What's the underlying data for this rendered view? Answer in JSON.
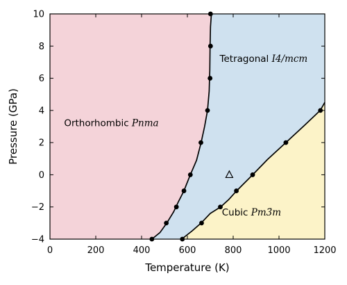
{
  "chart_data": {
    "type": "phase-diagram",
    "title": "",
    "xlabel": "Temperature (K)",
    "ylabel": "Pressure (GPa)",
    "xlim": [
      0,
      1200
    ],
    "ylim": [
      -4,
      10
    ],
    "x_ticks": [
      "0",
      "200",
      "400",
      "600",
      "800",
      "1000",
      "1200"
    ],
    "y_ticks": [
      "−4",
      "−2",
      "0",
      "2",
      "4",
      "6",
      "8",
      "10"
    ],
    "x_tick_values": [
      0,
      200,
      400,
      600,
      800,
      1000,
      1200
    ],
    "y_tick_values": [
      -4,
      -2,
      0,
      2,
      4,
      6,
      8,
      10
    ],
    "grid": false,
    "colors": {
      "orthorhombic": "#f4d3d9",
      "tetragonal": "#cfe1ef",
      "cubic": "#fcf3c8",
      "line": "#000000",
      "point": "#000000"
    },
    "regions": [
      {
        "name": "orthorhombic",
        "label_text": "Orthorhombic ",
        "label_math": "Pnma",
        "label_at": [
          268,
          3.2
        ]
      },
      {
        "name": "tetragonal",
        "label_text": "Tetragonal ",
        "label_math": "I4/mcm",
        "label_at": [
          933,
          7.2
        ]
      },
      {
        "name": "cubic",
        "label_text": "Cubic ",
        "label_math": "Pm3̄m",
        "label_at": [
          880,
          -2.35
        ]
      }
    ],
    "boundaries": [
      {
        "name": "orthorhombic-tetragonal",
        "curve": [
          [
            445,
            -4
          ],
          [
            480,
            -3.6
          ],
          [
            510,
            -3.0
          ],
          [
            540,
            -2.3
          ],
          [
            560,
            -1.7
          ],
          [
            585,
            -1.0
          ],
          [
            610,
            -0.1
          ],
          [
            640,
            0.9
          ],
          [
            660,
            2.0
          ],
          [
            675,
            3.0
          ],
          [
            688,
            4.0
          ],
          [
            695,
            5.2
          ],
          [
            698,
            6.5
          ],
          [
            699,
            8.0
          ],
          [
            701,
            9.2
          ],
          [
            705,
            10
          ]
        ],
        "points": [
          [
            445,
            -4
          ],
          [
            508,
            -3.0
          ],
          [
            552,
            -2.0
          ],
          [
            585,
            -1.0
          ],
          [
            613,
            0.0
          ],
          [
            659,
            2.0
          ],
          [
            688,
            4.0
          ],
          [
            699,
            6.0
          ],
          [
            701,
            8.0
          ],
          [
            701,
            10.0
          ]
        ]
      },
      {
        "name": "tetragonal-cubic",
        "curve": [
          [
            575,
            -4
          ],
          [
            620,
            -3.5
          ],
          [
            660,
            -3.0
          ],
          [
            700,
            -2.4
          ],
          [
            745,
            -2.0
          ],
          [
            780,
            -1.55
          ],
          [
            815,
            -1.0
          ],
          [
            850,
            -0.5
          ],
          [
            885,
            0.0
          ],
          [
            950,
            0.95
          ],
          [
            1030,
            2.0
          ],
          [
            1110,
            3.05
          ],
          [
            1180,
            4.0
          ],
          [
            1200,
            4.5
          ]
        ],
        "points": [
          [
            578,
            -4.0
          ],
          [
            662,
            -3.0
          ],
          [
            744,
            -2.0
          ],
          [
            814,
            -1.0
          ],
          [
            885,
            0.0
          ],
          [
            1030,
            2.0
          ],
          [
            1181,
            4.0
          ]
        ]
      }
    ],
    "marker": {
      "shape": "open-triangle",
      "x": 783,
      "y": 0.0
    }
  }
}
